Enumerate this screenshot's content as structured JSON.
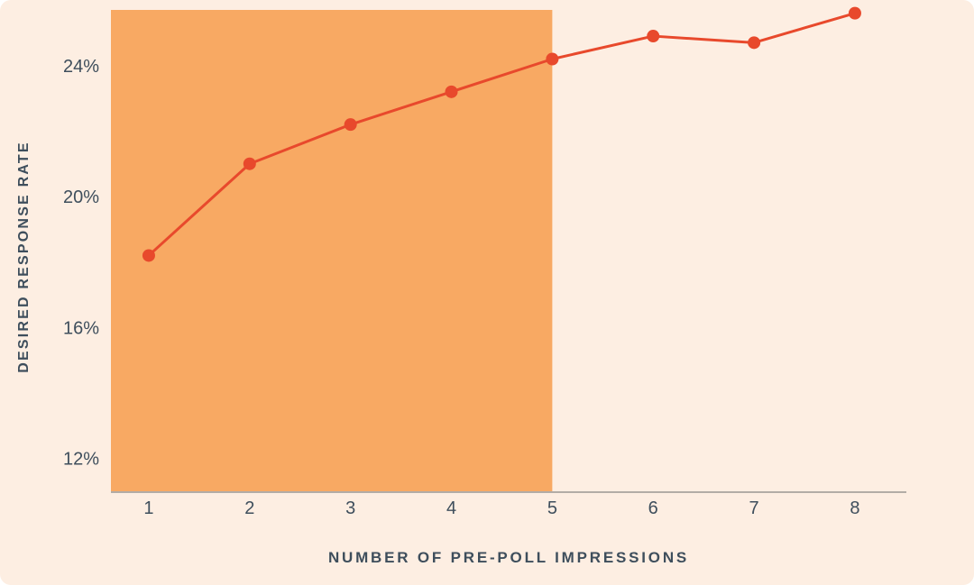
{
  "page": {
    "outer_background": "#ffffff",
    "card_background": "#fdeee2"
  },
  "chart_data": {
    "type": "line",
    "title": "",
    "xlabel": "NUMBER OF PRE-POLL IMPRESSIONS",
    "ylabel": "DESIRED RESPONSE RATE",
    "x": [
      1,
      2,
      3,
      4,
      5,
      6,
      7,
      8
    ],
    "x_tick_labels": [
      "1",
      "2",
      "3",
      "4",
      "5",
      "6",
      "7",
      "8"
    ],
    "series": [
      {
        "name": "desired-response-rate",
        "values": [
          18.2,
          21.0,
          22.2,
          23.2,
          24.2,
          24.9,
          24.7,
          25.6
        ]
      }
    ],
    "y_ticks": [
      12,
      16,
      20,
      24
    ],
    "y_tick_labels": [
      "12%",
      "16%",
      "20%",
      "24%"
    ],
    "ylim": [
      11.0,
      25.7
    ],
    "xlim": [
      0.625,
      8.51
    ],
    "grid": false,
    "legend": false,
    "highlight_region": {
      "x_start": 0.625,
      "x_end": 5
    },
    "colors": {
      "background": "#fdeee2",
      "highlight": "#f8a963",
      "line": "#e8492c",
      "marker": "#e8492c",
      "text": "#3e4e5c",
      "axis_line": "#b3aca6"
    }
  }
}
